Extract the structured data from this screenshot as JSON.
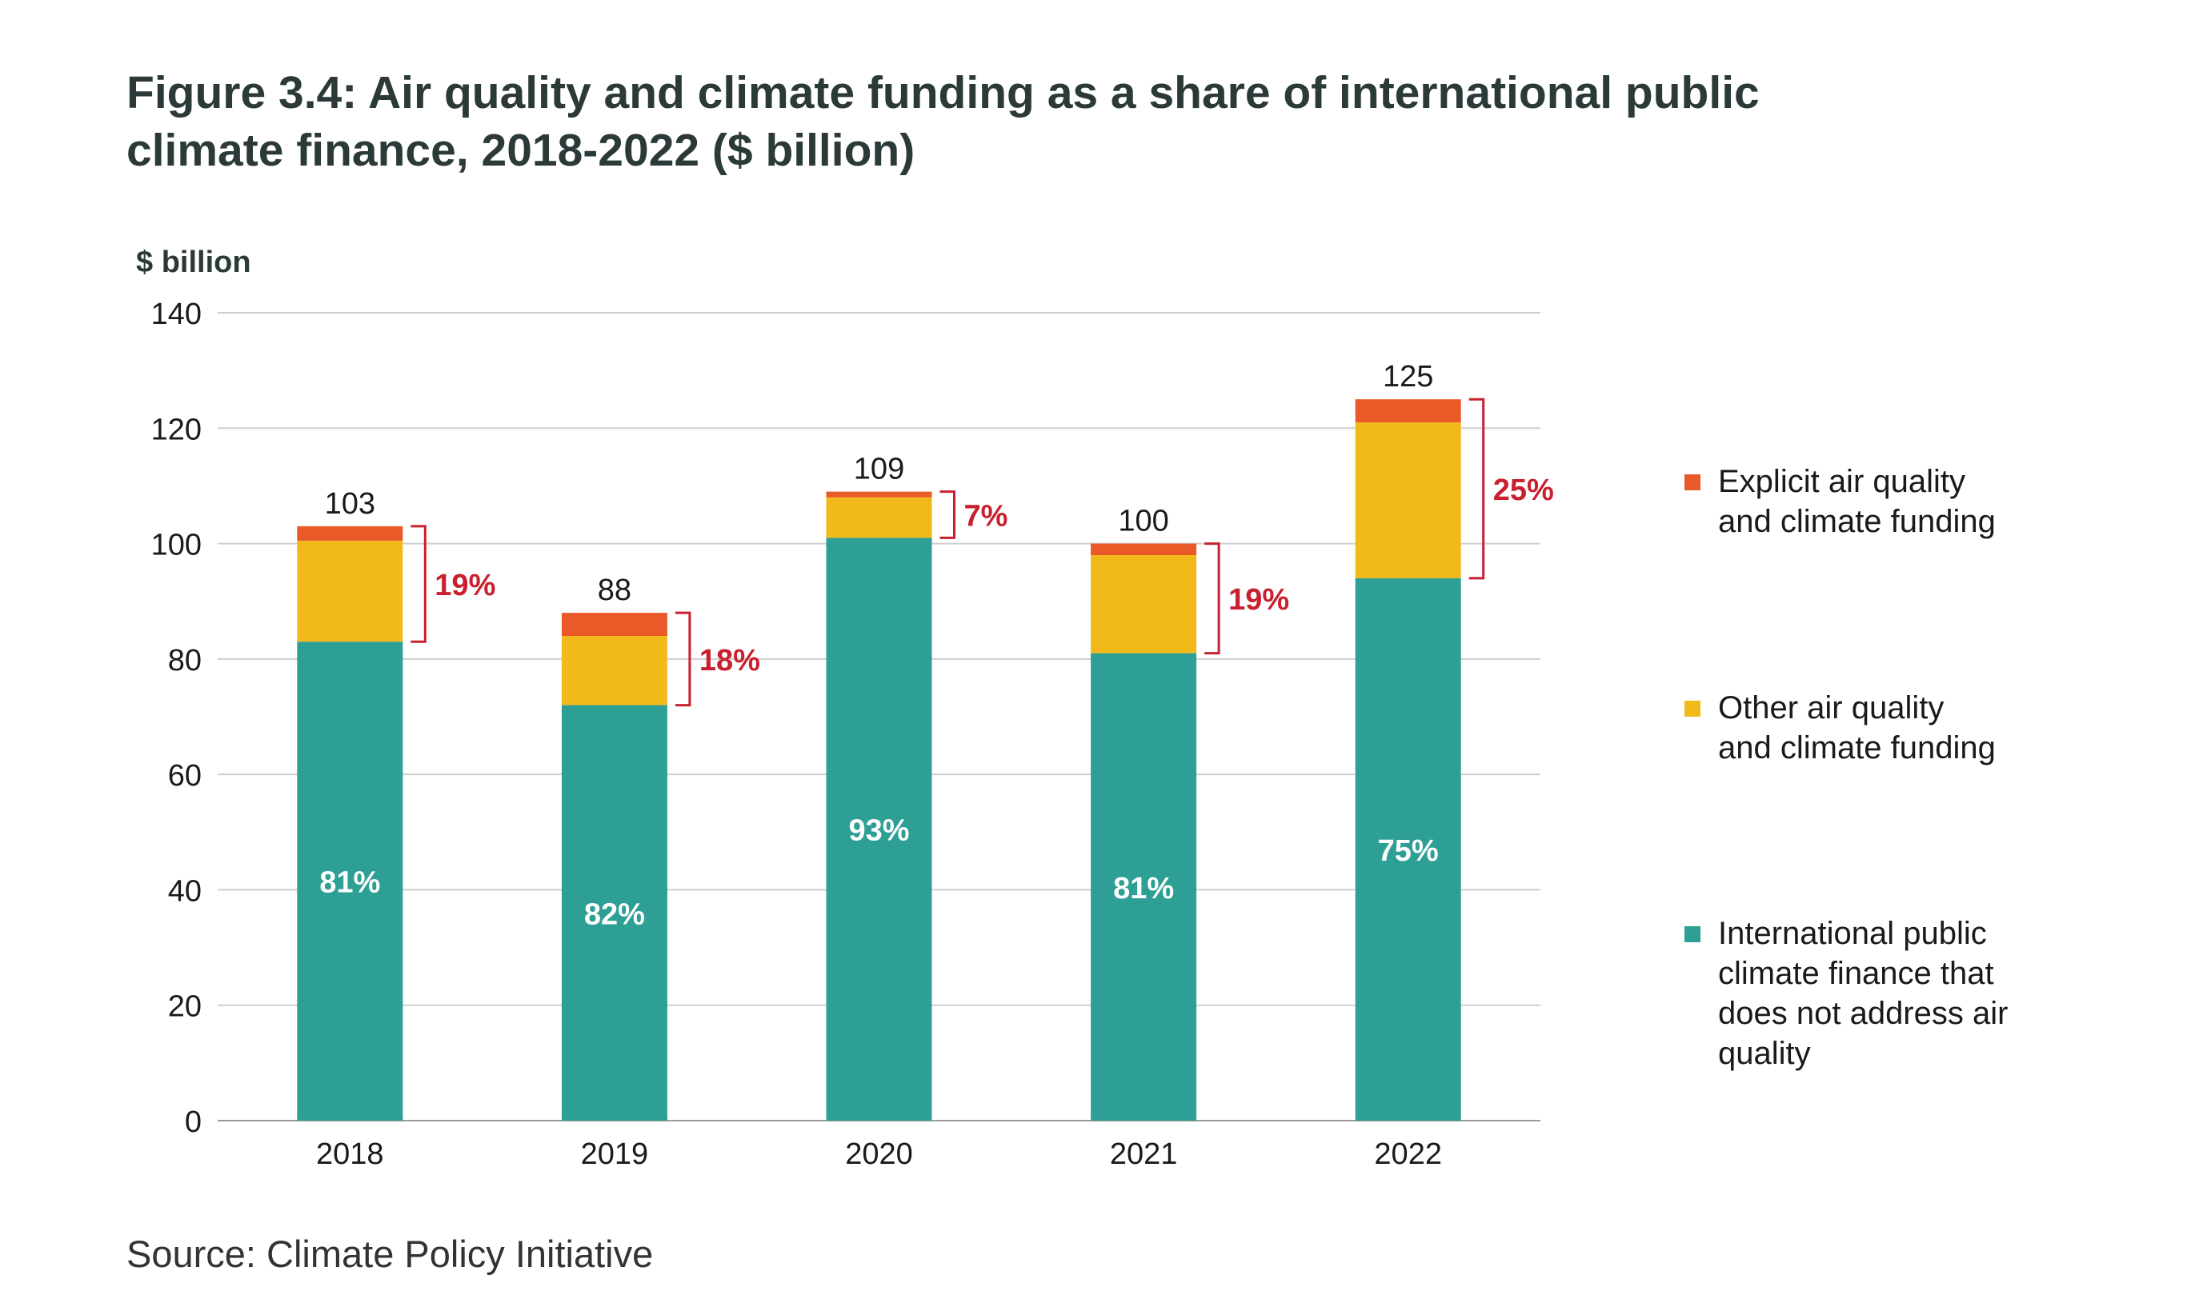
{
  "title_line1": "Figure 3.4: Air quality and climate funding as a share of international public",
  "title_line2": "climate finance, 2018-2022 ($ billion)",
  "source": "Source: Climate Policy Initiative",
  "colors": {
    "explicit": "#ea5a28",
    "other": "#f2b91b",
    "base": "#2e9f94",
    "bracket": "#c8202f",
    "grid": "#cfcfcf",
    "text": "#1a1a1a"
  },
  "chart_data": {
    "type": "bar",
    "stacked": true,
    "ylabel": "$ billion",
    "ylim": [
      0,
      140
    ],
    "yticks": [
      0,
      20,
      40,
      60,
      80,
      100,
      120,
      140
    ],
    "grid": true,
    "legend_position": "right",
    "categories": [
      "2018",
      "2019",
      "2020",
      "2021",
      "2022"
    ],
    "totals": [
      103,
      88,
      109,
      100,
      125
    ],
    "series": [
      {
        "name": "International public climate finance that does not address air quality",
        "color_key": "base",
        "values": [
          83,
          72,
          101,
          81,
          94
        ]
      },
      {
        "name": "Other air quality and climate funding",
        "color_key": "other",
        "values": [
          17.5,
          12,
          7,
          17,
          27
        ]
      },
      {
        "name": "Explicit air quality and climate funding",
        "color_key": "explicit",
        "values": [
          2.5,
          4,
          1,
          2,
          4
        ]
      }
    ],
    "base_share_labels": [
      "81%",
      "82%",
      "93%",
      "81%",
      "75%"
    ],
    "air_quality_share_labels": [
      "19%",
      "18%",
      "7%",
      "19%",
      "25%"
    ],
    "legend": [
      {
        "color_key": "explicit",
        "lines": [
          "Explicit air quality",
          "and climate funding"
        ]
      },
      {
        "color_key": "other",
        "lines": [
          "Other air quality",
          "and climate funding"
        ]
      },
      {
        "color_key": "base",
        "lines": [
          "International public",
          "climate finance that",
          "does not address air",
          "quality"
        ]
      }
    ]
  }
}
